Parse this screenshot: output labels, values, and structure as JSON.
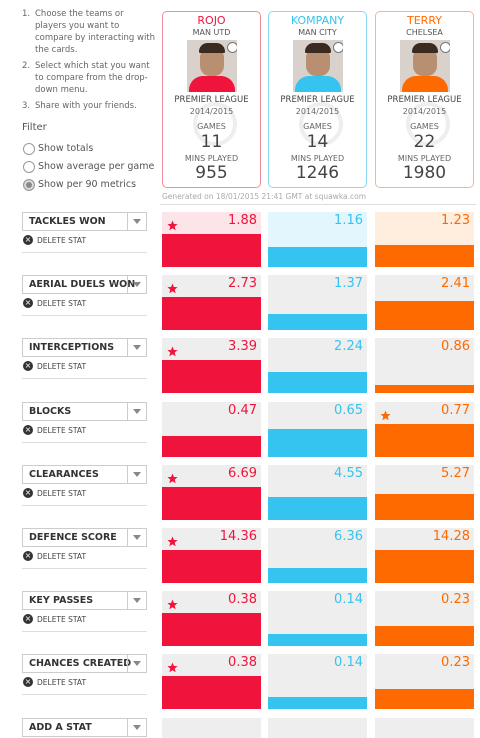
{
  "instructions": [
    "Choose the teams or players you want to compare by interacting with the cards.",
    "Select which stat you want to compare from the drop-down menu.",
    "Share with your friends."
  ],
  "filter": {
    "title": "Filter",
    "options": [
      "Show totals",
      "Show average per game",
      "Show per 90 metrics"
    ],
    "selected": 2
  },
  "league": "PREMIER LEAGUE",
  "season": "2014/2015",
  "games_label": "GAMES",
  "mins_label": "MINS PLAYED",
  "players": [
    {
      "name": "ROJO",
      "team": "MAN UTD",
      "games": 11,
      "mins": 955,
      "color": "#f0143c",
      "light": "#fde4e9",
      "border": "#f08c9c"
    },
    {
      "name": "KOMPANY",
      "team": "MAN CITY",
      "games": 14,
      "mins": 1246,
      "color": "#35c3ef",
      "light": "#e3f6fd",
      "border": "#8ad8f3"
    },
    {
      "name": "TERRY",
      "team": "CHELSEA",
      "games": 22,
      "mins": 1980,
      "color": "#ff6a00",
      "light": "#ffeede",
      "border": "#f8b48a"
    }
  ],
  "generated": "Generated on 18/01/2015 21:41 GMT at squawka.com",
  "delete_label": "DELETE STAT",
  "add_label": "ADD A STAT",
  "stats": [
    {
      "name": "TACKLES WON",
      "values": [
        1.88,
        1.16,
        1.23
      ]
    },
    {
      "name": "AERIAL DUELS WON",
      "values": [
        2.73,
        1.37,
        2.41
      ]
    },
    {
      "name": "INTERCEPTIONS",
      "values": [
        3.39,
        2.24,
        0.86
      ]
    },
    {
      "name": "BLOCKS",
      "values": [
        0.47,
        0.65,
        0.77
      ]
    },
    {
      "name": "CLEARANCES",
      "values": [
        6.69,
        4.55,
        5.27
      ]
    },
    {
      "name": "DEFENCE SCORE",
      "values": [
        14.36,
        6.36,
        14.28
      ]
    },
    {
      "name": "KEY PASSES",
      "values": [
        0.38,
        0.14,
        0.23
      ]
    },
    {
      "name": "CHANCES CREATED",
      "values": [
        0.38,
        0.14,
        0.23
      ]
    }
  ]
}
